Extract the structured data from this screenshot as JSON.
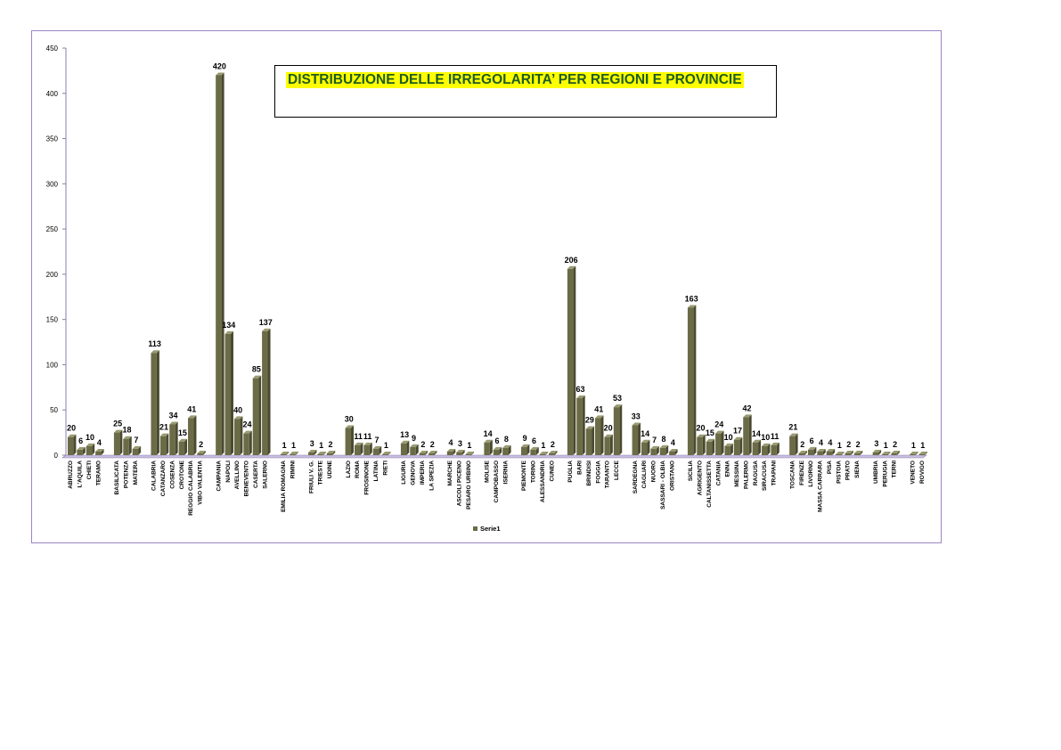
{
  "chart_data": {
    "type": "bar",
    "title": "DISTRIBUZIONE DELLE IRREGOLARITA’ PER REGIONI E PROVINCIE",
    "xlabel": "",
    "ylabel": "",
    "ylim": [
      0,
      450
    ],
    "yticks": [
      0,
      50,
      100,
      150,
      200,
      250,
      300,
      350,
      400,
      450
    ],
    "grid": false,
    "legend_position": "bottom",
    "bar_color": "#6b6b47",
    "series": [
      {
        "name": "Serie1"
      }
    ],
    "categories": [
      {
        "label": "ABRUZZO",
        "value": 20
      },
      {
        "label": "L'AQUILA",
        "value": 6
      },
      {
        "label": "CHIETI",
        "value": 10
      },
      {
        "label": "TERAMO",
        "value": 4
      },
      {
        "label": "",
        "value": null
      },
      {
        "label": "BASILICATA",
        "value": 25
      },
      {
        "label": "POTENZA",
        "value": 18
      },
      {
        "label": "MATERA",
        "value": 7
      },
      {
        "label": "",
        "value": null
      },
      {
        "label": "CALABRIA",
        "value": 113
      },
      {
        "label": "CATANZARO",
        "value": 21
      },
      {
        "label": "COSENZA",
        "value": 34
      },
      {
        "label": "CROTONE",
        "value": 15
      },
      {
        "label": "REGGIO CALABRIA",
        "value": 41
      },
      {
        "label": "VIBO VALENTIA",
        "value": 2
      },
      {
        "label": "",
        "value": null
      },
      {
        "label": "CAMPANIA",
        "value": 420
      },
      {
        "label": "NAPOLI",
        "value": 134
      },
      {
        "label": "AVELLINO",
        "value": 40
      },
      {
        "label": "BENEVENTO",
        "value": 24
      },
      {
        "label": "CASERTA",
        "value": 85
      },
      {
        "label": "SALERNO",
        "value": 137
      },
      {
        "label": "",
        "value": null
      },
      {
        "label": "EMILIA ROMAGNA",
        "value": 1
      },
      {
        "label": "RIMINI",
        "value": 1
      },
      {
        "label": "",
        "value": null
      },
      {
        "label": "FRIULI V. G.",
        "value": 3
      },
      {
        "label": "TRIESTE",
        "value": 1
      },
      {
        "label": "UDINE",
        "value": 2
      },
      {
        "label": "",
        "value": null
      },
      {
        "label": "LAZIO",
        "value": 30
      },
      {
        "label": "ROMA",
        "value": 11
      },
      {
        "label": "FROSINONE",
        "value": 11
      },
      {
        "label": "LATINA",
        "value": 7
      },
      {
        "label": "RIETI",
        "value": 1
      },
      {
        "label": "",
        "value": null
      },
      {
        "label": "LIGURIA",
        "value": 13
      },
      {
        "label": "GENOVA",
        "value": 9
      },
      {
        "label": "IMPERIA",
        "value": 2
      },
      {
        "label": "LA SPEZIA",
        "value": 2
      },
      {
        "label": "",
        "value": null
      },
      {
        "label": "MARCHE",
        "value": 4
      },
      {
        "label": "ASCOLI PICENO",
        "value": 3
      },
      {
        "label": "PESARO URBINO",
        "value": 1
      },
      {
        "label": "",
        "value": null
      },
      {
        "label": "MOLISE",
        "value": 14
      },
      {
        "label": "CAMPOBASSO",
        "value": 6
      },
      {
        "label": "ISERNIA",
        "value": 8
      },
      {
        "label": "",
        "value": null
      },
      {
        "label": "PIEMONTE",
        "value": 9
      },
      {
        "label": "TORINO",
        "value": 6
      },
      {
        "label": "ALESSANDRIA",
        "value": 1
      },
      {
        "label": "CUNEO",
        "value": 2
      },
      {
        "label": "",
        "value": null
      },
      {
        "label": "PUGLIA",
        "value": 206
      },
      {
        "label": "BARI",
        "value": 63
      },
      {
        "label": "BRINDISI",
        "value": 29
      },
      {
        "label": "FOGGIA",
        "value": 41
      },
      {
        "label": "TARANTO",
        "value": 20
      },
      {
        "label": "LECCE",
        "value": 53
      },
      {
        "label": "",
        "value": null
      },
      {
        "label": "SARDEGNA",
        "value": 33
      },
      {
        "label": "CAGLIARI",
        "value": 14
      },
      {
        "label": "NUORO",
        "value": 7
      },
      {
        "label": "SASSARI - OLBIA",
        "value": 8
      },
      {
        "label": "ORISTANO",
        "value": 4
      },
      {
        "label": "",
        "value": null
      },
      {
        "label": "SICILIA",
        "value": 163
      },
      {
        "label": "AGRIGENTO",
        "value": 20
      },
      {
        "label": "CALTANISSETTA",
        "value": 15
      },
      {
        "label": "CATANIA",
        "value": 24
      },
      {
        "label": "ENNA",
        "value": 10
      },
      {
        "label": "MESSINA",
        "value": 17
      },
      {
        "label": "PALERMO",
        "value": 42
      },
      {
        "label": "RAGUSA",
        "value": 14
      },
      {
        "label": "SIRACUSA",
        "value": 10
      },
      {
        "label": "TRAPANI",
        "value": 11
      },
      {
        "label": "",
        "value": null
      },
      {
        "label": "TOSCANA",
        "value": 21
      },
      {
        "label": "FIRENZE",
        "value": 2
      },
      {
        "label": "LIVORNO",
        "value": 6
      },
      {
        "label": "MASSA CARRARA",
        "value": 4
      },
      {
        "label": "PISA",
        "value": 4
      },
      {
        "label": "PISTOIA",
        "value": 1
      },
      {
        "label": "PRATO",
        "value": 2
      },
      {
        "label": "SIENA",
        "value": 2
      },
      {
        "label": "",
        "value": null
      },
      {
        "label": "UMBRIA",
        "value": 3
      },
      {
        "label": "PERUGIA",
        "value": 1
      },
      {
        "label": "TERNI",
        "value": 2
      },
      {
        "label": "",
        "value": null
      },
      {
        "label": "VENETO",
        "value": 1
      },
      {
        "label": "ROVIGO",
        "value": 1
      }
    ]
  }
}
